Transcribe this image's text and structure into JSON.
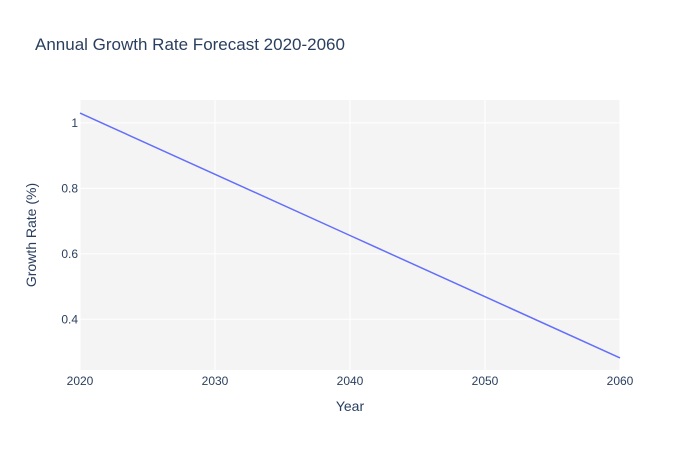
{
  "chart_data": {
    "type": "line",
    "title": "Annual Growth Rate Forecast 2020-2060",
    "xlabel": "Year",
    "ylabel": "Growth Rate (%)",
    "x": [
      2020,
      2030,
      2040,
      2050,
      2060
    ],
    "series": [
      {
        "values": [
          1.03,
          0.843,
          0.656,
          0.469,
          0.282
        ]
      }
    ],
    "xlim": [
      2020,
      2060
    ],
    "ylim": [
      0.245,
      1.07
    ],
    "xticks": [
      2020,
      2030,
      2040,
      2050,
      2060
    ],
    "yticks": [
      0.4,
      0.6,
      0.8,
      1
    ],
    "xtick_labels": [
      "2020",
      "2030",
      "2040",
      "2050",
      "2060"
    ],
    "ytick_labels": [
      "0.4",
      "0.6",
      "0.8",
      "1"
    ],
    "grid": true,
    "legend": "none",
    "colors": {
      "line": "#636efa",
      "plot_bg": "#f4f4f4",
      "grid": "#ffffff",
      "text": "#2a3f5f"
    }
  }
}
